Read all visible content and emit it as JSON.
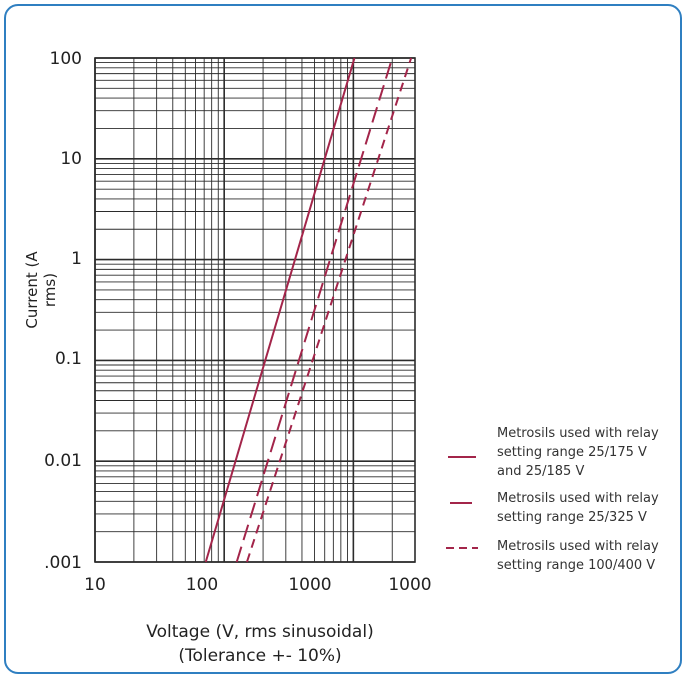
{
  "chart_data": {
    "type": "line",
    "xscale": "log",
    "yscale": "log",
    "xlim": [
      10,
      3000
    ],
    "ylim": [
      0.001,
      100
    ],
    "grid": true,
    "legend_position": "right",
    "line_color": "#a3254a",
    "x_tick_labels": [
      "10",
      "100",
      "1000",
      "1000"
    ],
    "y_tick_labels": [
      "100",
      "10",
      "1",
      "0.1",
      "0.01",
      ".001"
    ],
    "xlabel_lines": [
      "Voltage (V, rms sinusoidal)",
      "(Tolerance +- 10%)"
    ],
    "ylabel_lines": [
      "Current (A",
      "rms)"
    ],
    "series": [
      {
        "name_lines": [
          "Metrosils used with relay",
          "setting range 25/175 V",
          "and 25/185 V"
        ],
        "style": "solid",
        "points": [
          [
            72,
            0.001
          ],
          [
            1020,
            100
          ]
        ]
      },
      {
        "name_lines": [
          "Metrosils used with relay",
          "setting range 25/325 V"
        ],
        "style": "dashed",
        "points": [
          [
            125,
            0.001
          ],
          [
            2000,
            100
          ]
        ]
      },
      {
        "name_lines": [
          "Metrosils used with relay",
          "setting range 100/400 V"
        ],
        "style": "dotted-dash",
        "points": [
          [
            150,
            0.001
          ],
          [
            2800,
            100
          ]
        ]
      }
    ]
  }
}
